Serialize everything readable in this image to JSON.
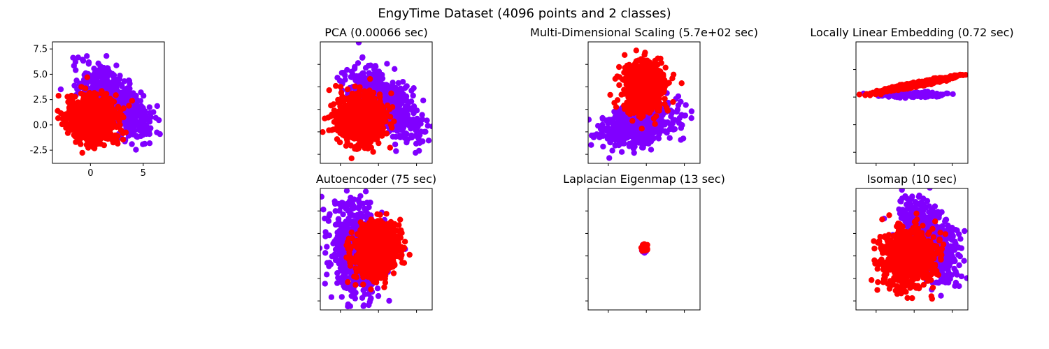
{
  "figure": {
    "suptitle": "EngyTime Dataset (4096 points and 2 classes)",
    "background": "#ffffff"
  },
  "colors": {
    "class_0": "#8000ff",
    "class_1": "#ff0000"
  },
  "chart_data": [
    {
      "type": "scatter",
      "title": "",
      "xticks": [
        "0",
        "5"
      ],
      "yticks": [
        "-2.5",
        "0.0",
        "2.5",
        "5.0",
        "7.5"
      ],
      "xlim": [
        -3.6,
        7.0
      ],
      "ylim": [
        -3.8,
        8.2
      ],
      "clusters": [
        {
          "class": 0,
          "cx": 2.4,
          "cy": 2.3,
          "sx": 1.6,
          "sy": 1.7,
          "rho": -0.65,
          "n": 650
        },
        {
          "class": 1,
          "cx": 0.2,
          "cy": 0.6,
          "sx": 1.1,
          "sy": 1.1,
          "rho": 0.0,
          "n": 900
        }
      ]
    },
    {
      "type": "scatter",
      "title": "PCA (0.00066 sec)",
      "xticks": [
        "",
        "",
        ""
      ],
      "yticks": [
        "",
        "",
        "",
        "",
        ""
      ],
      "xlim": [
        -3.6,
        7.0
      ],
      "ylim": [
        -3.8,
        8.2
      ],
      "clusters": [
        {
          "class": 0,
          "cx": 2.4,
          "cy": 2.3,
          "sx": 1.6,
          "sy": 1.7,
          "rho": -0.65,
          "n": 650
        },
        {
          "class": 1,
          "cx": 0.2,
          "cy": 0.6,
          "sx": 1.1,
          "sy": 1.1,
          "rho": 0.0,
          "n": 900
        }
      ]
    },
    {
      "type": "scatter",
      "title": "Multi-Dimensional Scaling (5.7e+02 sec)",
      "xticks": [
        "",
        "",
        ""
      ],
      "yticks": [
        "",
        "",
        "",
        "",
        ""
      ],
      "xlim": [
        -6,
        6
      ],
      "ylim": [
        -6,
        6
      ],
      "clusters": [
        {
          "class": 0,
          "cx": -0.5,
          "cy": -2.2,
          "sx": 2.0,
          "sy": 1.1,
          "rho": 0.4,
          "n": 650
        },
        {
          "class": 1,
          "cx": 0.0,
          "cy": 1.6,
          "sx": 1.0,
          "sy": 1.2,
          "rho": 0.0,
          "n": 900
        }
      ]
    },
    {
      "type": "scatter",
      "title": "Locally Linear Embedding (0.72 sec)",
      "xticks": [
        "",
        "",
        ""
      ],
      "yticks": [
        "",
        "",
        "",
        ""
      ],
      "xlim": [
        -6,
        6
      ],
      "ylim": [
        -6,
        6
      ],
      "clusters": [
        {
          "class": 0,
          "cx": 0.0,
          "cy": 0.8,
          "sx": 1.8,
          "sy": 0.12,
          "rho": 0.0,
          "n": 200
        },
        {
          "class": 1,
          "cx": 0.5,
          "cy": 1.8,
          "sx": 1.9,
          "sy": 0.35,
          "rho": 0.96,
          "n": 650
        }
      ]
    },
    {
      "type": "scatter",
      "title": "Autoencoder (75 sec)",
      "xticks": [
        "",
        "",
        ""
      ],
      "yticks": [
        "",
        "",
        "",
        "",
        ""
      ],
      "xlim": [
        -6,
        6
      ],
      "ylim": [
        -6,
        6
      ],
      "clusters": [
        {
          "class": 0,
          "cx": -2.2,
          "cy": 0.0,
          "sx": 1.3,
          "sy": 2.4,
          "rho": -0.15,
          "n": 650
        },
        {
          "class": 1,
          "cx": 0.0,
          "cy": 0.0,
          "sx": 1.2,
          "sy": 1.3,
          "rho": 0.1,
          "n": 900
        }
      ]
    },
    {
      "type": "scatter",
      "title": "Laplacian Eigenmap (13 sec)",
      "xticks": [
        "",
        "",
        ""
      ],
      "yticks": [
        "",
        "",
        "",
        "",
        ""
      ],
      "xlim": [
        -1,
        1
      ],
      "ylim": [
        -1,
        1
      ],
      "clusters": [
        {
          "class": 0,
          "cx": 0.0,
          "cy": 0.0,
          "sx": 0.02,
          "sy": 0.025,
          "rho": 0.0,
          "n": 60
        },
        {
          "class": 1,
          "cx": 0.0,
          "cy": 0.02,
          "sx": 0.02,
          "sy": 0.025,
          "rho": 0.0,
          "n": 80
        }
      ]
    },
    {
      "type": "scatter",
      "title": "Isomap (10 sec)",
      "xticks": [
        "",
        "",
        ""
      ],
      "yticks": [
        "",
        "",
        "",
        "",
        ""
      ],
      "xlim": [
        -6,
        6
      ],
      "ylim": [
        -6,
        6
      ],
      "clusters": [
        {
          "class": 0,
          "cx": 1.8,
          "cy": 1.0,
          "sx": 1.6,
          "sy": 2.0,
          "rho": -0.55,
          "n": 650
        },
        {
          "class": 1,
          "cx": -0.5,
          "cy": -0.8,
          "sx": 1.4,
          "sy": 1.4,
          "rho": 0.0,
          "n": 900
        }
      ]
    }
  ]
}
